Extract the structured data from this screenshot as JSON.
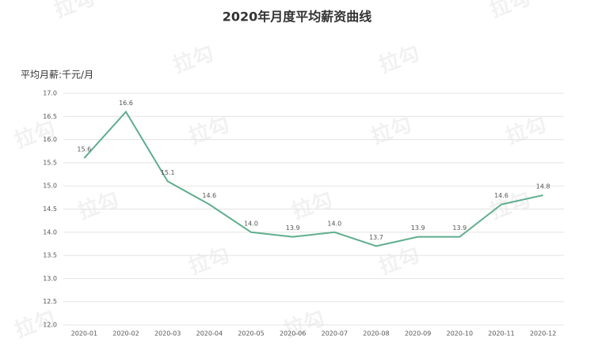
{
  "chart_data": {
    "type": "line",
    "title": "2020年月度平均薪资曲线",
    "y_label": "平均月薪:千元/月",
    "watermark": "拉勾",
    "categories": [
      "2020-01",
      "2020-02",
      "2020-03",
      "2020-04",
      "2020-05",
      "2020-06",
      "2020-07",
      "2020-08",
      "2020-09",
      "2020-10",
      "2020-11",
      "2020-12"
    ],
    "values": [
      15.6,
      16.6,
      15.1,
      14.6,
      14.0,
      13.9,
      14.0,
      13.7,
      13.9,
      13.9,
      14.6,
      14.8
    ],
    "value_labels": [
      "15.6",
      "16.6",
      "15.1",
      "14.6",
      "14.0",
      "13.9",
      "14.0",
      "13.7",
      "13.9",
      "13.9",
      "14.6",
      "14.8"
    ],
    "color": "#5fae8e",
    "ylim": [
      12,
      17
    ],
    "yticks": [
      {
        "value": 12,
        "label": "12.0"
      },
      {
        "value": 12.5,
        "label": "12.5"
      },
      {
        "value": 13,
        "label": "13.0"
      },
      {
        "value": 13.5,
        "label": "13.5"
      },
      {
        "value": 14,
        "label": "14.0"
      },
      {
        "value": 14.5,
        "label": "14.5"
      },
      {
        "value": 15,
        "label": "15.0"
      },
      {
        "value": 15.5,
        "label": "15.5"
      },
      {
        "value": 16,
        "label": "16.0"
      },
      {
        "value": 16.5,
        "label": "16.5"
      },
      {
        "value": 17,
        "label": "17.0"
      }
    ],
    "grid": true
  }
}
